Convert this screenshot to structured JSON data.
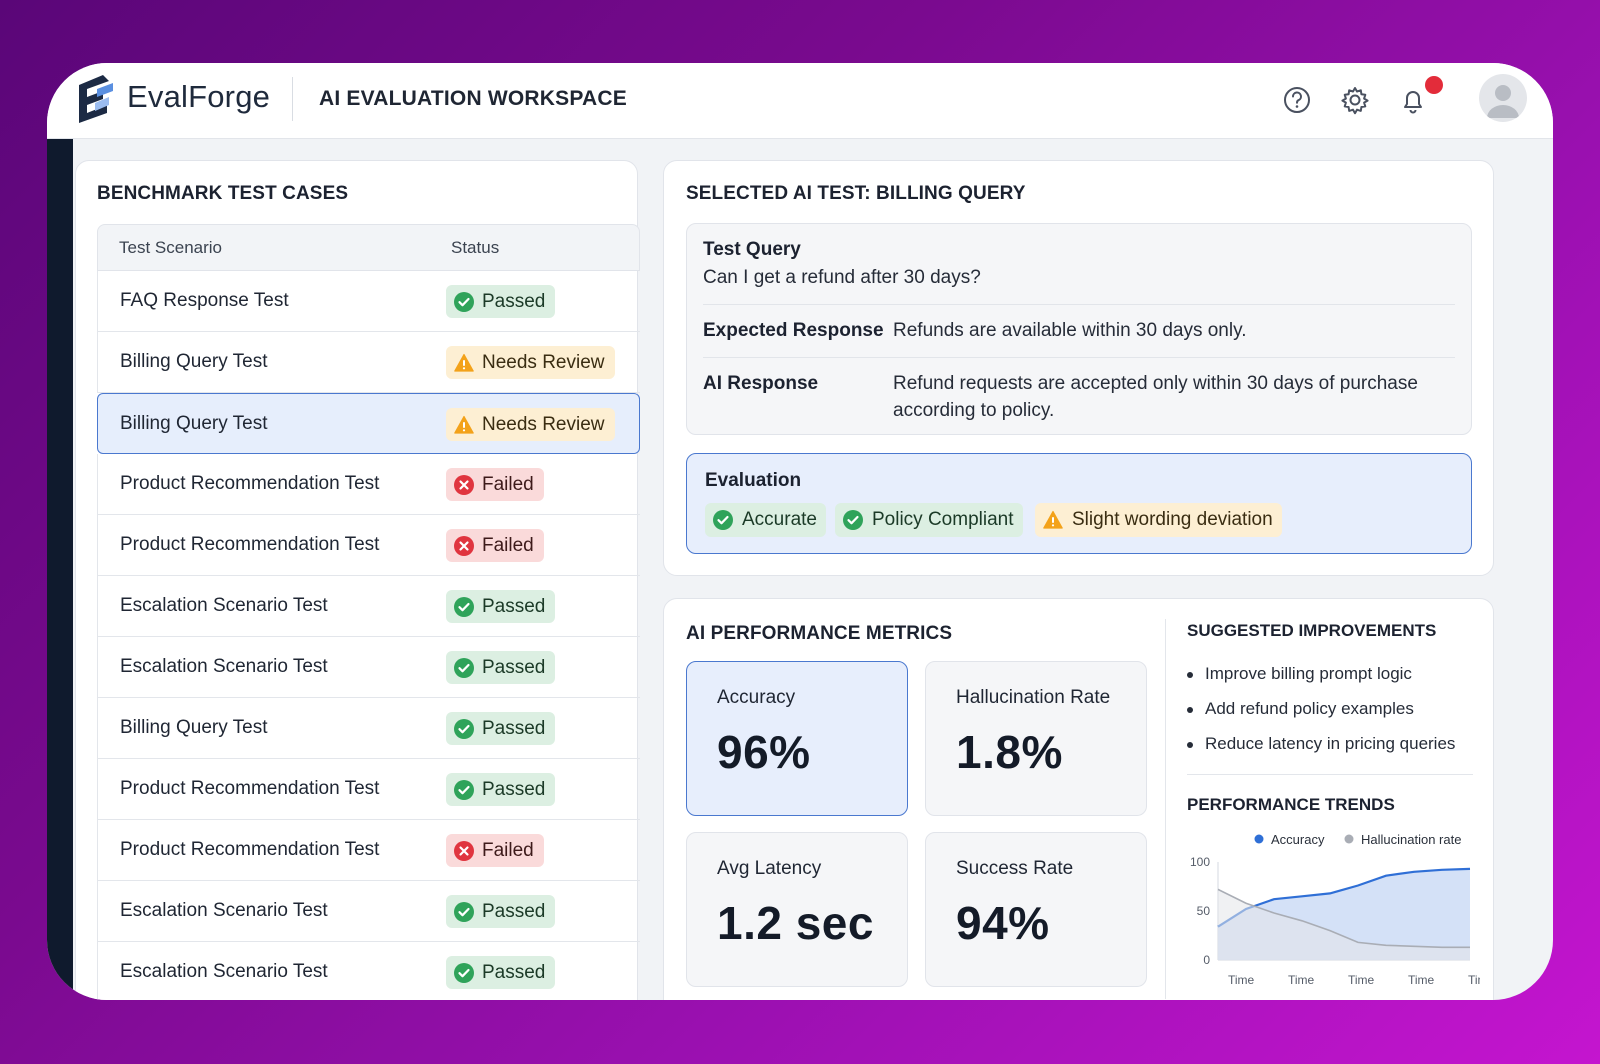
{
  "header": {
    "brand": "EvalForge",
    "workspace_title": "AI EVALUATION WORKSPACE"
  },
  "colors": {
    "accent_blue": "#4a78cf",
    "passed_green": "#2fa35a",
    "review_amber": "#f3a21a",
    "failed_red": "#e0353f",
    "notification_red": "#e32c3a",
    "sidebar_dark": "#0f1a2d"
  },
  "icons": {
    "help": "question-circle",
    "settings": "gear",
    "notifications": "bell",
    "avatar": "user-silhouette"
  },
  "benchmark": {
    "title": "BENCHMARK TEST CASES",
    "columns": {
      "scenario": "Test Scenario",
      "status": "Status"
    },
    "rows": [
      {
        "name": "FAQ Response Test",
        "status": "Passed",
        "type": "passed"
      },
      {
        "name": "Billing Query Test",
        "status": "Needs Review",
        "type": "review"
      },
      {
        "name": "Billing Query Test",
        "status": "Needs Review",
        "type": "review",
        "selected": true
      },
      {
        "name": "Product Recommendation Test",
        "status": "Failed",
        "type": "failed"
      },
      {
        "name": "Product Recommendation Test",
        "status": "Failed",
        "type": "failed"
      },
      {
        "name": "Escalation Scenario Test",
        "status": "Passed",
        "type": "passed"
      },
      {
        "name": "Escalation Scenario Test",
        "status": "Passed",
        "type": "passed"
      },
      {
        "name": "Billing Query Test",
        "status": "Passed",
        "type": "passed"
      },
      {
        "name": "Product Recommendation Test",
        "status": "Passed",
        "type": "passed"
      },
      {
        "name": "Product Recommendation Test",
        "status": "Failed",
        "type": "failed"
      },
      {
        "name": "Escalation Scenario Test",
        "status": "Passed",
        "type": "passed"
      },
      {
        "name": "Escalation Scenario Test",
        "status": "Passed",
        "type": "passed"
      }
    ]
  },
  "selected": {
    "title": "SELECTED AI TEST: BILLING QUERY",
    "query_label": "Test Query",
    "query_text": "Can I get a refund after 30 days?",
    "expected_label": "Expected Response",
    "expected_text": "Refunds are available within 30 days only.",
    "ai_label": "AI Response",
    "ai_text_line1": "Refund requests are accepted only within 30 days of purchase",
    "ai_text_line2": "according to policy.",
    "evaluation": {
      "title": "Evaluation",
      "chips": [
        {
          "label": "Accurate",
          "type": "ok"
        },
        {
          "label": "Policy Compliant",
          "type": "ok"
        },
        {
          "label": "Slight wording deviation",
          "type": "warn"
        }
      ]
    }
  },
  "metrics": {
    "title": "AI PERFORMANCE METRICS",
    "cards": [
      {
        "label": "Accuracy",
        "value": "96%"
      },
      {
        "label": "Hallucination Rate",
        "value": "1.8%"
      },
      {
        "label": "Avg Latency",
        "value": "1.2 sec"
      },
      {
        "label": "Success Rate",
        "value": "94%"
      }
    ]
  },
  "suggestions": {
    "title": "SUGGESTED IMPROVEMENTS",
    "items": [
      "Improve billing prompt logic",
      "Add refund policy examples",
      "Reduce latency in pricing queries"
    ]
  },
  "trends": {
    "title": "PERFORMANCE TRENDS",
    "chart_data": {
      "type": "area",
      "legend_position": "top-right",
      "ylim": [
        0,
        100
      ],
      "yticks": [
        "100",
        "50",
        "0"
      ],
      "x_labels": [
        "Time",
        "Time",
        "Time",
        "Time",
        "Time"
      ],
      "series": [
        {
          "name": "Accuracy",
          "color": "#2f6fd6",
          "values": [
            34,
            52,
            62,
            65,
            68,
            76,
            86,
            90,
            92,
            93
          ]
        },
        {
          "name": "Hallucination rate",
          "color": "#a9adb5",
          "values": [
            72,
            58,
            48,
            40,
            30,
            18,
            15,
            14,
            13,
            13
          ]
        }
      ]
    }
  }
}
